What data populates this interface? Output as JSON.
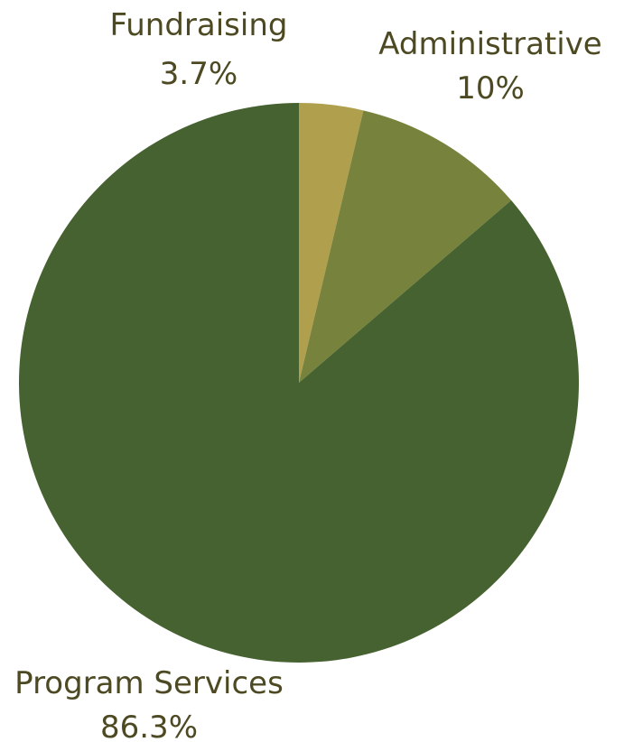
{
  "chart_data": {
    "type": "pie",
    "start": "top",
    "direction": "clockwise",
    "slices": [
      {
        "label": "Fundraising",
        "value": 3.7,
        "display": "3.7%",
        "color": "#b09f4d"
      },
      {
        "label": "Administrative",
        "value": 10,
        "display": "10%",
        "color": "#77823d"
      },
      {
        "label": "Program Services",
        "value": 86.3,
        "display": "86.3%",
        "color": "#466230"
      }
    ]
  }
}
